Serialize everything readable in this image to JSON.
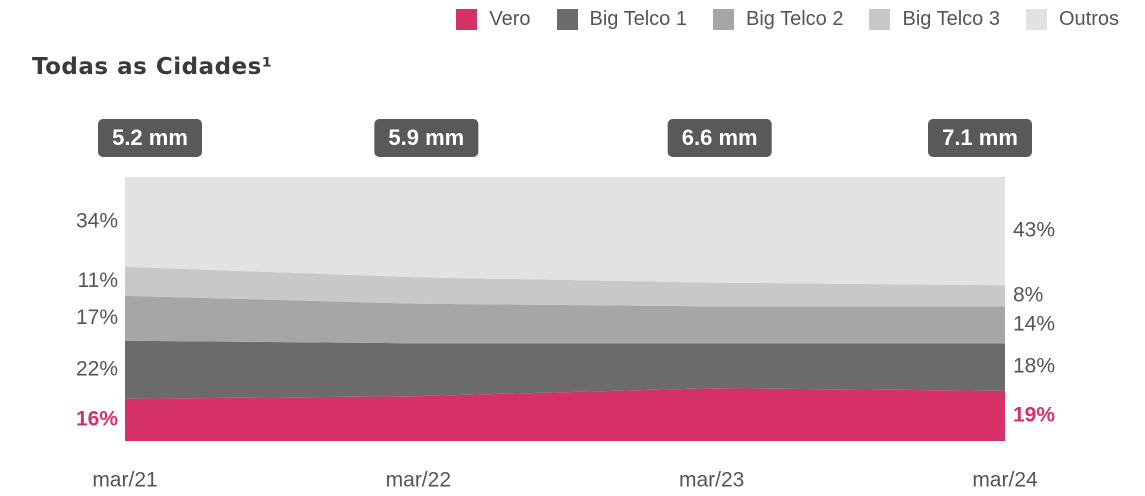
{
  "chart_data": {
    "type": "stacked_area",
    "title": "Todas as Cidades¹",
    "categories": [
      "mar/21",
      "mar/22",
      "mar/23",
      "mar/24"
    ],
    "annotations": [
      "5.2 mm",
      "5.9 mm",
      "6.6 mm",
      "7.1 mm"
    ],
    "ylim": [
      0,
      100
    ],
    "legend": "top-right",
    "series": [
      {
        "name": "Vero",
        "color": "#d63068",
        "values": [
          16,
          17,
          20,
          19
        ],
        "value_labels": [
          "16%",
          null,
          null,
          "19%"
        ]
      },
      {
        "name": "Big Telco 1",
        "color": "#6b6b6b",
        "values": [
          22,
          20,
          17,
          18
        ],
        "value_labels": [
          "22%",
          null,
          null,
          "18%"
        ]
      },
      {
        "name": "Big Telco 2",
        "color": "#a6a6a6",
        "values": [
          17,
          15,
          14,
          14
        ],
        "value_labels": [
          "17%",
          null,
          null,
          "14%"
        ]
      },
      {
        "name": "Big Telco 3",
        "color": "#c8c8c8",
        "values": [
          11,
          10,
          9,
          8
        ],
        "value_labels": [
          "11%",
          null,
          null,
          "8%"
        ]
      },
      {
        "name": "Outros",
        "color": "#e2e2e2",
        "values": [
          34,
          38,
          40,
          43
        ],
        "value_labels": [
          "34%",
          null,
          null,
          "43%"
        ]
      }
    ]
  }
}
